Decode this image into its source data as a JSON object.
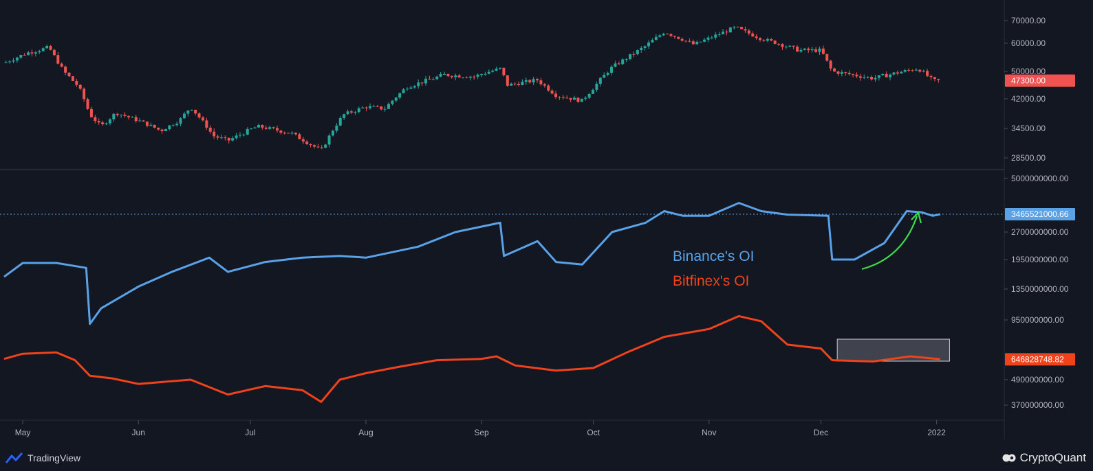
{
  "colors": {
    "background": "#131722",
    "up_candle": "#26a69a",
    "down_candle": "#ef5350",
    "binance_line": "#5aa2e8",
    "bitfinex_line": "#f0421b",
    "arrow": "#3ddc4a",
    "grid_text": "#b2b5be"
  },
  "branding": {
    "left": "TradingView",
    "right": "CryptoQuant",
    "left_icon": "tradingview-logo-icon",
    "right_icon": "cryptoquant-logo-icon"
  },
  "chart_data": [
    {
      "type": "candlestick",
      "name": "price",
      "yticks": [
        "70000.00",
        "60000.00",
        "50000.00",
        "42000.00",
        "34500.00",
        "28500.00"
      ],
      "ytick_values": [
        70000,
        60000,
        50000,
        42000,
        34500,
        28500
      ],
      "current_label": "47300.00",
      "current_value": 47300,
      "series_points": [
        [
          "2021-04-26",
          53000
        ],
        [
          "2021-05-02",
          56500
        ],
        [
          "2021-05-08",
          58500
        ],
        [
          "2021-05-12",
          50000
        ],
        [
          "2021-05-16",
          45500
        ],
        [
          "2021-05-19",
          38000
        ],
        [
          "2021-05-22",
          35000
        ],
        [
          "2021-05-26",
          38500
        ],
        [
          "2021-06-01",
          36500
        ],
        [
          "2021-06-07",
          34000
        ],
        [
          "2021-06-12",
          36500
        ],
        [
          "2021-06-15",
          40000
        ],
        [
          "2021-06-21",
          33000
        ],
        [
          "2021-06-25",
          32000
        ],
        [
          "2021-07-03",
          35000
        ],
        [
          "2021-07-12",
          33500
        ],
        [
          "2021-07-20",
          30000
        ],
        [
          "2021-07-26",
          38000
        ],
        [
          "2021-08-01",
          40000
        ],
        [
          "2021-08-06",
          39500
        ],
        [
          "2021-08-12",
          45500
        ],
        [
          "2021-08-22",
          49000
        ],
        [
          "2021-08-30",
          48500
        ],
        [
          "2021-09-06",
          51000
        ],
        [
          "2021-09-08",
          46000
        ],
        [
          "2021-09-16",
          47500
        ],
        [
          "2021-09-21",
          43000
        ],
        [
          "2021-09-28",
          41500
        ],
        [
          "2021-10-06",
          51500
        ],
        [
          "2021-10-15",
          59000
        ],
        [
          "2021-10-20",
          65000
        ],
        [
          "2021-10-28",
          59500
        ],
        [
          "2021-11-08",
          67000
        ],
        [
          "2021-11-15",
          62000
        ],
        [
          "2021-11-25",
          57500
        ],
        [
          "2021-12-01",
          57500
        ],
        [
          "2021-12-04",
          50000
        ],
        [
          "2021-12-15",
          48000
        ],
        [
          "2021-12-27",
          51000
        ],
        [
          "2021-12-31",
          47300
        ],
        [
          "2022-01-02",
          47300
        ]
      ]
    },
    {
      "type": "line",
      "name": "open interest",
      "yticks": [
        "5000000000.00",
        "2700000000.00",
        "1950000000.00",
        "1350000000.00",
        "950000000.00",
        "490000000.00",
        "370000000.00"
      ],
      "ytick_values": [
        5000000000,
        2700000000,
        1950000000,
        1350000000,
        950000000,
        490000000,
        370000000
      ],
      "xticks": [
        "May",
        "Jun",
        "Jul",
        "Aug",
        "Sep",
        "Oct",
        "Nov",
        "Dec",
        "2022"
      ],
      "xtick_dates": [
        "2021-05-01",
        "2021-06-01",
        "2021-07-01",
        "2021-08-01",
        "2021-09-01",
        "2021-10-01",
        "2021-11-01",
        "2021-12-01",
        "2022-01-01"
      ],
      "annotations": [
        "Binance's OI",
        "Bitfinex's OI"
      ],
      "series": [
        {
          "name": "Binance's OI",
          "current_label": "3465521000.66",
          "points": [
            [
              "2021-04-26",
              1600000000.0
            ],
            [
              "2021-05-01",
              1880000000.0
            ],
            [
              "2021-05-10",
              1880000000.0
            ],
            [
              "2021-05-18",
              1780000000.0
            ],
            [
              "2021-05-19",
              920000000.0
            ],
            [
              "2021-05-22",
              1100000000.0
            ],
            [
              "2021-06-01",
              1400000000.0
            ],
            [
              "2021-06-10",
              1700000000.0
            ],
            [
              "2021-06-20",
              2000000000.0
            ],
            [
              "2021-06-25",
              1700000000.0
            ],
            [
              "2021-07-05",
              1900000000.0
            ],
            [
              "2021-07-15",
              2000000000.0
            ],
            [
              "2021-07-25",
              2050000000.0
            ],
            [
              "2021-08-01",
              2000000000.0
            ],
            [
              "2021-08-15",
              2300000000.0
            ],
            [
              "2021-08-25",
              2700000000.0
            ],
            [
              "2021-09-06",
              3100000000.0
            ],
            [
              "2021-09-07",
              2050000000.0
            ],
            [
              "2021-09-16",
              2450000000.0
            ],
            [
              "2021-09-21",
              1900000000.0
            ],
            [
              "2021-09-28",
              1850000000.0
            ],
            [
              "2021-10-06",
              2700000000.0
            ],
            [
              "2021-10-15",
              3100000000.0
            ],
            [
              "2021-10-20",
              3600000000.0
            ],
            [
              "2021-10-25",
              3400000000.0
            ],
            [
              "2021-11-01",
              3400000000.0
            ],
            [
              "2021-11-09",
              3950000000.0
            ],
            [
              "2021-11-15",
              3600000000.0
            ],
            [
              "2021-11-22",
              3450000000.0
            ],
            [
              "2021-12-03",
              3400000000.0
            ],
            [
              "2021-12-04",
              1950000000.0
            ],
            [
              "2021-12-10",
              1950000000.0
            ],
            [
              "2021-12-18",
              2400000000.0
            ],
            [
              "2021-12-24",
              3600000000.0
            ],
            [
              "2021-12-28",
              3550000000.0
            ],
            [
              "2021-12-31",
              3400000000.0
            ],
            [
              "2022-01-02",
              3465521000.0
            ]
          ]
        },
        {
          "name": "Bitfinex's OI",
          "current_label": "646828748.82",
          "points": [
            [
              "2021-04-26",
              650000000.0
            ],
            [
              "2021-05-01",
              690000000.0
            ],
            [
              "2021-05-10",
              700000000.0
            ],
            [
              "2021-05-15",
              640000000.0
            ],
            [
              "2021-05-19",
              520000000.0
            ],
            [
              "2021-05-25",
              500000000.0
            ],
            [
              "2021-06-01",
              470000000.0
            ],
            [
              "2021-06-15",
              490000000.0
            ],
            [
              "2021-06-25",
              420000000.0
            ],
            [
              "2021-07-05",
              460000000.0
            ],
            [
              "2021-07-15",
              440000000.0
            ],
            [
              "2021-07-20",
              385000000.0
            ],
            [
              "2021-07-25",
              490000000.0
            ],
            [
              "2021-08-01",
              540000000.0
            ],
            [
              "2021-08-10",
              590000000.0
            ],
            [
              "2021-08-20",
              640000000.0
            ],
            [
              "2021-09-01",
              650000000.0
            ],
            [
              "2021-09-05",
              670000000.0
            ],
            [
              "2021-09-10",
              600000000.0
            ],
            [
              "2021-09-21",
              560000000.0
            ],
            [
              "2021-10-01",
              580000000.0
            ],
            [
              "2021-10-10",
              700000000.0
            ],
            [
              "2021-10-20",
              820000000.0
            ],
            [
              "2021-11-01",
              880000000.0
            ],
            [
              "2021-11-09",
              1000000000.0
            ],
            [
              "2021-11-15",
              940000000.0
            ],
            [
              "2021-11-22",
              760000000.0
            ],
            [
              "2021-12-01",
              730000000.0
            ],
            [
              "2021-12-04",
              640000000.0
            ],
            [
              "2021-12-15",
              630000000.0
            ],
            [
              "2021-12-25",
              670000000.0
            ],
            [
              "2022-01-02",
              646829000.0
            ]
          ]
        }
      ],
      "highlight_range": [
        "2021-12-05",
        "2022-01-03"
      ]
    }
  ]
}
